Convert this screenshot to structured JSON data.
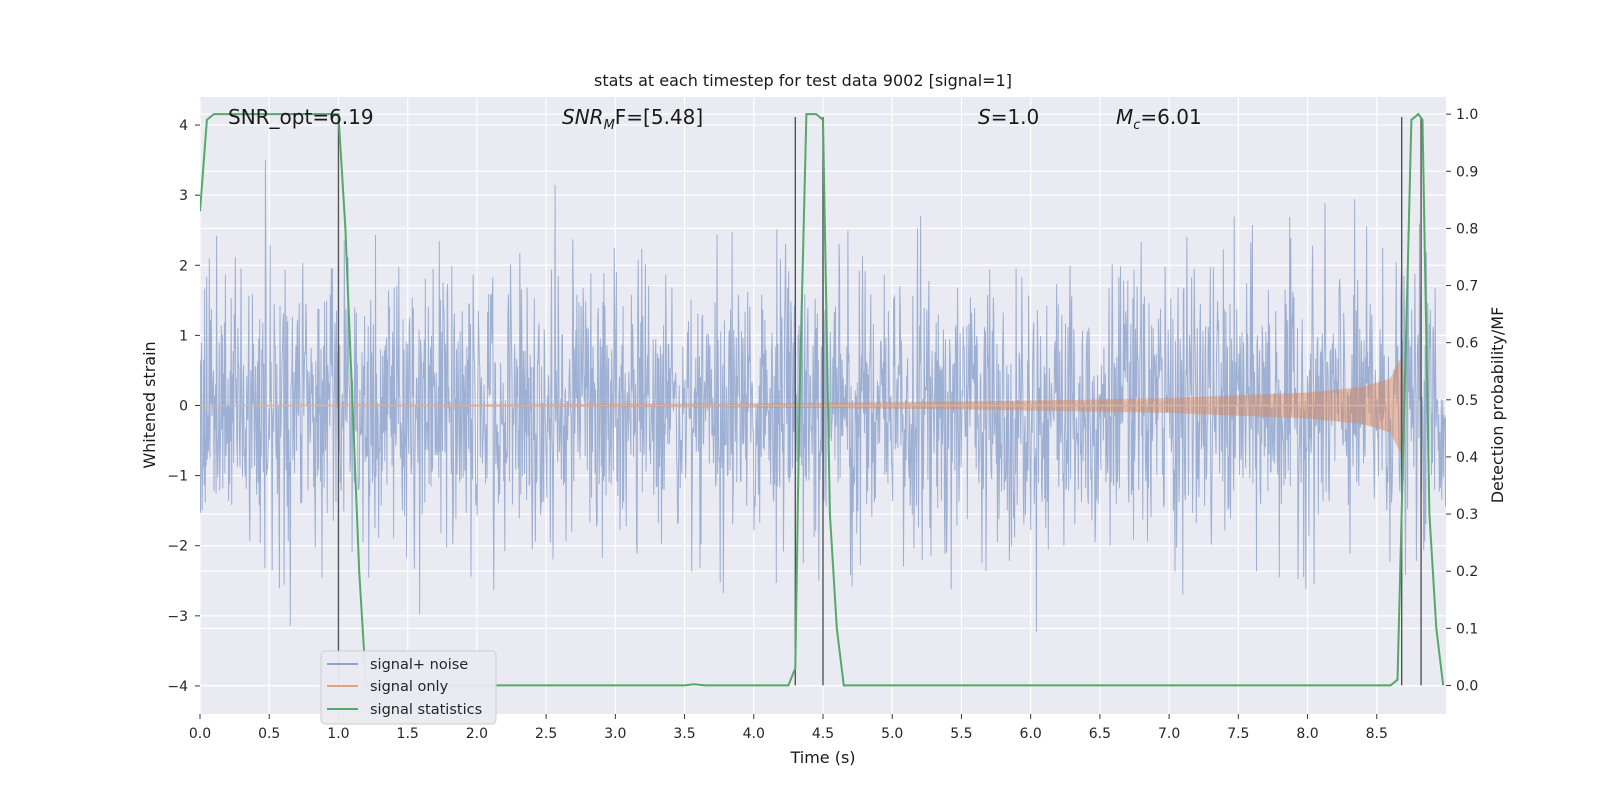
{
  "chart_data": {
    "type": "line",
    "title": "stats at each timestep for test data 9002 [signal=1]",
    "xlabel": "Time (s)",
    "ylabel_left": "Whitened strain",
    "ylabel_right": "Detection probability/MF",
    "xlim": [
      0.0,
      9.0
    ],
    "ylim_left": [
      -4.4,
      4.4
    ],
    "ylim_right": [
      -0.05,
      1.03
    ],
    "x_ticks": [
      "0.0",
      "0.5",
      "1.0",
      "1.5",
      "2.0",
      "2.5",
      "3.0",
      "3.5",
      "4.0",
      "4.5",
      "5.0",
      "5.5",
      "6.0",
      "6.5",
      "7.0",
      "7.5",
      "8.0",
      "8.5"
    ],
    "y_ticks_left": [
      "−4",
      "−3",
      "−2",
      "−1",
      "0",
      "1",
      "2",
      "3",
      "4"
    ],
    "y_ticks_right": [
      "0.0",
      "0.1",
      "0.2",
      "0.3",
      "0.4",
      "0.5",
      "0.6",
      "0.7",
      "0.8",
      "0.9",
      "1.0"
    ],
    "grid": true,
    "legend_position": "lower-left",
    "annotations": {
      "snr_opt": "SNR_opt=6.19",
      "snr_mf_main": "SNR",
      "snr_mf_sub": "M",
      "snr_mf_rest": "F=[5.48]",
      "s_main": "S",
      "s_rest": "=1.0",
      "mc_main": "M",
      "mc_sub": "c",
      "mc_rest": "=6.01"
    },
    "colors": {
      "background": "#eaeaf2",
      "grid": "#ffffff",
      "noise": "#8fa4cc",
      "signal": "#dd8452",
      "stats": "#55a868",
      "vlines": "#555555"
    },
    "series": [
      {
        "name": "signal+ noise",
        "axis": "left",
        "envelope": "noise",
        "typical_amplitude": 1.6,
        "peak_range": [
          -4.0,
          4.0
        ]
      },
      {
        "name": "signal only",
        "axis": "left",
        "envelope": "chirp",
        "amplitude_points": [
          [
            0.0,
            0.0
          ],
          [
            3.8,
            0.02
          ],
          [
            5.5,
            0.05
          ],
          [
            7.0,
            0.1
          ],
          [
            8.0,
            0.18
          ],
          [
            8.4,
            0.26
          ],
          [
            8.6,
            0.38
          ],
          [
            8.68,
            0.7
          ],
          [
            8.7,
            0.0
          ]
        ]
      },
      {
        "name": "signal statistics",
        "axis": "right",
        "x": [
          0.0,
          0.05,
          0.1,
          0.2,
          0.95,
          1.0,
          1.05,
          1.1,
          1.15,
          1.2,
          1.5,
          2.0,
          3.0,
          3.5,
          3.57,
          3.65,
          4.0,
          4.25,
          4.3,
          4.33,
          4.38,
          4.45,
          4.5,
          4.55,
          4.6,
          4.65,
          5.0,
          6.0,
          7.0,
          8.0,
          8.6,
          8.65,
          8.7,
          8.75,
          8.8,
          8.83,
          8.88,
          8.93,
          8.98
        ],
        "y": [
          0.83,
          0.99,
          1.0,
          1.0,
          1.0,
          1.0,
          0.8,
          0.5,
          0.2,
          0.0,
          0.0,
          0.0,
          0.0,
          0.0,
          0.002,
          0.0,
          0.0,
          0.0,
          0.03,
          0.5,
          1.0,
          1.0,
          0.99,
          0.3,
          0.1,
          0.0,
          0.0,
          0.0,
          0.0,
          0.0,
          0.0,
          0.01,
          0.5,
          0.99,
          1.0,
          0.99,
          0.3,
          0.1,
          0.0
        ]
      }
    ],
    "vlines_x": [
      1.0,
      4.3,
      4.5,
      8.68,
      8.82
    ]
  }
}
